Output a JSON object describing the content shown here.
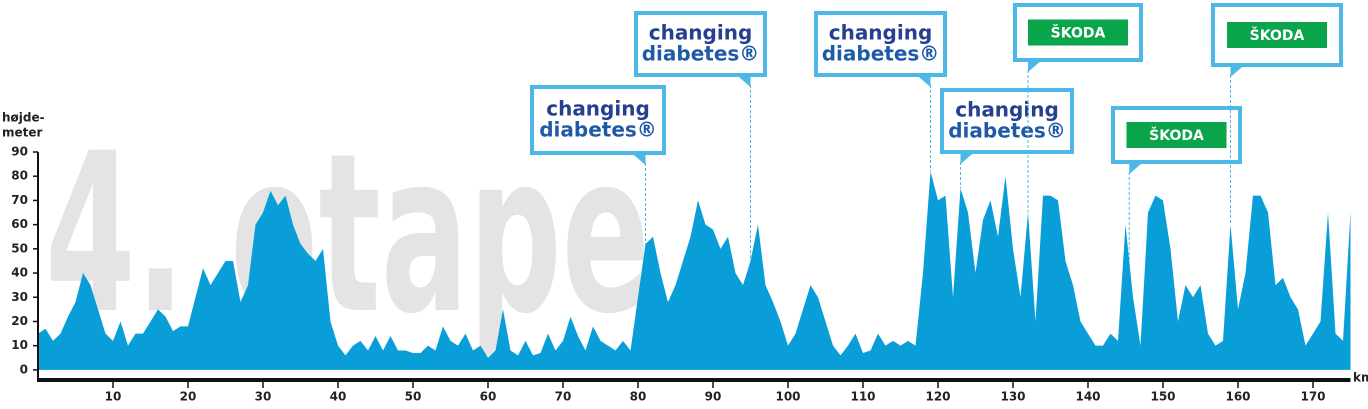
{
  "chart_data": {
    "type": "area",
    "watermark": "4. etape",
    "ylabel_lines": [
      "højde-",
      "meter"
    ],
    "xlabel": "km",
    "color": "#0a9ed9",
    "grid": false,
    "xlim": [
      0,
      175
    ],
    "ylim": [
      -5,
      90
    ],
    "xticks": [
      10,
      20,
      30,
      40,
      50,
      60,
      70,
      80,
      90,
      100,
      110,
      120,
      130,
      140,
      150,
      160,
      170
    ],
    "yticks": [
      0,
      10,
      20,
      30,
      40,
      50,
      60,
      70,
      80,
      90
    ],
    "x": [
      0,
      1,
      2,
      3,
      4,
      5,
      6,
      7,
      8,
      9,
      10,
      11,
      12,
      13,
      14,
      15,
      16,
      17,
      18,
      19,
      20,
      21,
      22,
      23,
      24,
      25,
      26,
      27,
      28,
      29,
      30,
      31,
      32,
      33,
      34,
      35,
      36,
      37,
      38,
      39,
      40,
      41,
      42,
      43,
      44,
      45,
      46,
      47,
      48,
      49,
      50,
      51,
      52,
      53,
      54,
      55,
      56,
      57,
      58,
      59,
      60,
      61,
      62,
      63,
      64,
      65,
      66,
      67,
      68,
      69,
      70,
      71,
      72,
      73,
      74,
      75,
      76,
      77,
      78,
      79,
      80,
      81,
      82,
      83,
      84,
      85,
      86,
      87,
      88,
      89,
      90,
      91,
      92,
      93,
      94,
      95,
      96,
      97,
      98,
      99,
      100,
      101,
      102,
      103,
      104,
      105,
      106,
      107,
      108,
      109,
      110,
      111,
      112,
      113,
      114,
      115,
      116,
      117,
      118,
      119,
      120,
      121,
      122,
      123,
      124,
      125,
      126,
      127,
      128,
      129,
      130,
      131,
      132,
      133,
      134,
      135,
      136,
      137,
      138,
      139,
      140,
      141,
      142,
      143,
      144,
      145,
      146,
      147,
      148,
      149,
      150,
      151,
      152,
      153,
      154,
      155,
      156,
      157,
      158,
      159,
      160,
      161,
      162,
      163,
      164,
      165,
      166,
      167,
      168,
      169,
      170,
      171,
      172,
      173,
      174,
      175
    ],
    "values": [
      15,
      17,
      12,
      15,
      22,
      28,
      40,
      35,
      25,
      15,
      12,
      20,
      10,
      15,
      15,
      20,
      25,
      22,
      16,
      18,
      18,
      30,
      42,
      35,
      40,
      45,
      45,
      28,
      35,
      60,
      65,
      74,
      68,
      72,
      60,
      52,
      48,
      45,
      50,
      20,
      10,
      6,
      10,
      12,
      8,
      14,
      8,
      14,
      8,
      8,
      7,
      7,
      10,
      8,
      18,
      12,
      10,
      15,
      8,
      10,
      5,
      8,
      25,
      8,
      6,
      12,
      6,
      7,
      15,
      8,
      12,
      22,
      14,
      8,
      18,
      12,
      10,
      8,
      12,
      8,
      30,
      52,
      55,
      40,
      28,
      35,
      45,
      55,
      70,
      60,
      58,
      50,
      55,
      40,
      35,
      45,
      60,
      35,
      28,
      20,
      10,
      15,
      25,
      35,
      30,
      20,
      10,
      6,
      10,
      15,
      7,
      8,
      15,
      10,
      12,
      10,
      12,
      10,
      40,
      82,
      70,
      72,
      30,
      75,
      65,
      40,
      62,
      70,
      55,
      80,
      50,
      30,
      65,
      20,
      72,
      72,
      70,
      45,
      35,
      20,
      15,
      10,
      10,
      15,
      12,
      60,
      30,
      10,
      65,
      72,
      70,
      50,
      20,
      35,
      30,
      35,
      15,
      10,
      12,
      60,
      25,
      40,
      72,
      72,
      65,
      35,
      38,
      30,
      25,
      10,
      15,
      20,
      65,
      15,
      12,
      65
    ],
    "annotations": [
      {
        "x": 81,
        "lines": [
          "changing",
          "diabetes®"
        ]
      },
      {
        "x": 95,
        "lines": [
          "changing",
          "diabetes®"
        ]
      },
      {
        "x": 119,
        "lines": [
          "changing",
          "diabetes®"
        ]
      },
      {
        "x": 123,
        "lines": [
          "changing",
          "diabetes®"
        ]
      },
      {
        "x": 132,
        "lines": [
          "ŠKODA"
        ]
      },
      {
        "x": 145.5,
        "lines": [
          "ŠKODA"
        ]
      },
      {
        "x": 159,
        "lines": [
          "ŠKODA"
        ]
      }
    ]
  }
}
